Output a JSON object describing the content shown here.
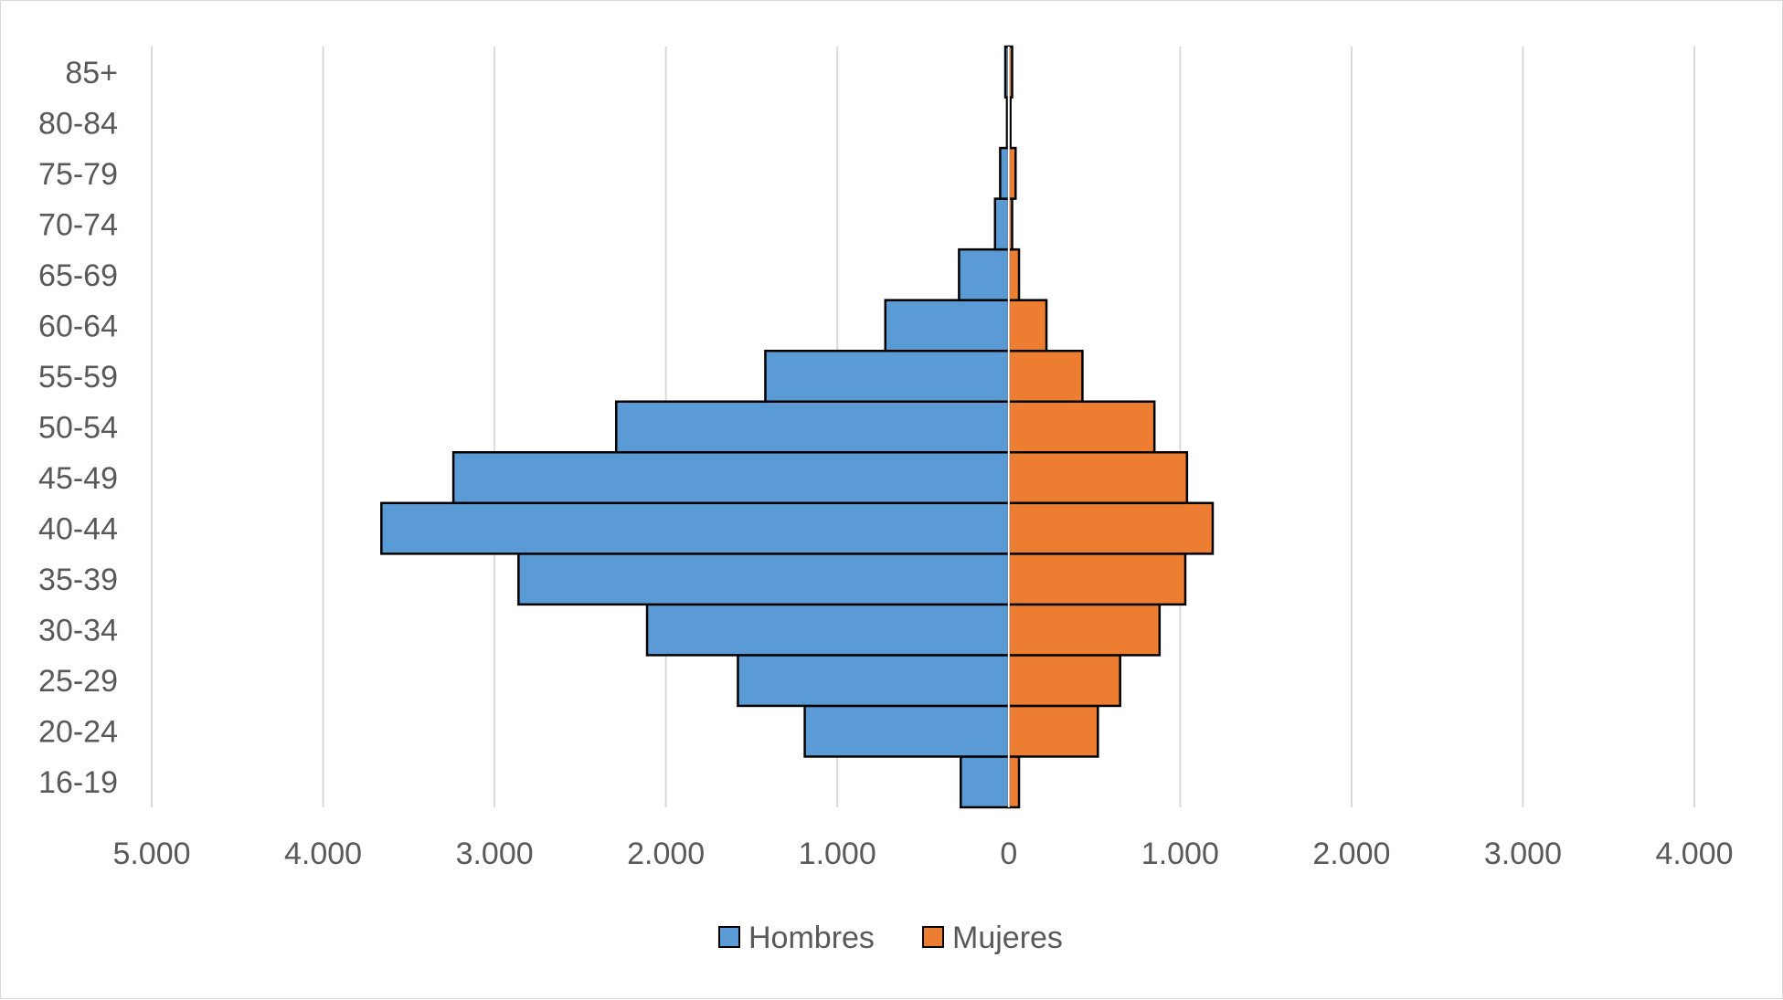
{
  "chart_data": {
    "type": "bar",
    "orientation": "horizontal",
    "layout": "population-pyramid",
    "categories": [
      "16-19",
      "20-24",
      "25-29",
      "30-34",
      "35-39",
      "40-44",
      "45-49",
      "50-54",
      "55-59",
      "60-64",
      "65-69",
      "70-74",
      "75-79",
      "80-84",
      "85+"
    ],
    "series": [
      {
        "name": "Hombres",
        "color": "#5b9bd5",
        "side": "left",
        "values": [
          280,
          1190,
          1580,
          2110,
          2860,
          3660,
          3240,
          2290,
          1420,
          720,
          290,
          80,
          50,
          10,
          20
        ]
      },
      {
        "name": "Mujeres",
        "color": "#ed7d31",
        "side": "right",
        "values": [
          60,
          520,
          650,
          880,
          1030,
          1190,
          1040,
          850,
          430,
          220,
          60,
          20,
          40,
          10,
          20
        ]
      }
    ],
    "xlim": [
      -5000,
      4000
    ],
    "x_ticks": [
      -5000,
      -4000,
      -3000,
      -2000,
      -1000,
      0,
      1000,
      2000,
      3000,
      4000
    ],
    "x_tick_labels": [
      "5.000",
      "4.000",
      "3.000",
      "2.000",
      "1.000",
      "0",
      "1.000",
      "2.000",
      "3.000",
      "4.000"
    ],
    "grid": true,
    "legend_position": "bottom",
    "title": "",
    "xlabel": "",
    "ylabel": ""
  }
}
